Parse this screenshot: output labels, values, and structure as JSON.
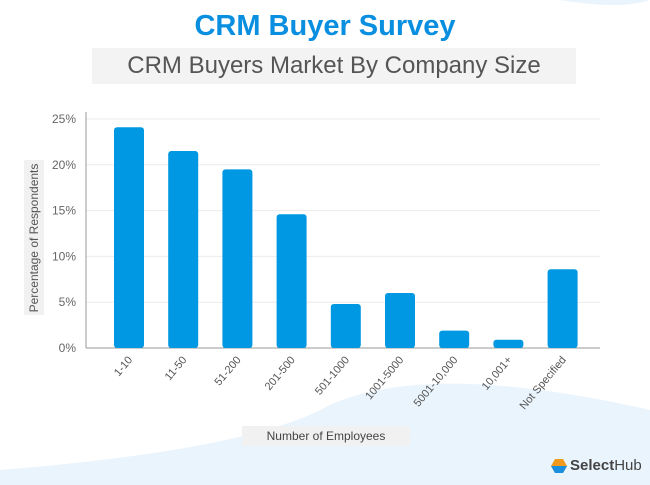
{
  "header": {
    "title": "CRM Buyer Survey",
    "subtitle": "CRM Buyers Market By Company Size"
  },
  "logo": {
    "bold": "Select",
    "rest": "Hub"
  },
  "chart_data": {
    "type": "bar",
    "title": "CRM Buyers Market By Company Size",
    "xlabel": "Number of Employees",
    "ylabel": "Percentage of Respondents",
    "categories": [
      "1-10",
      "11-50",
      "51-200",
      "201-500",
      "501-1000",
      "1001-5000",
      "5001-10,000",
      "10,001+",
      "Not Specified"
    ],
    "values": [
      24.1,
      21.5,
      19.5,
      14.6,
      4.8,
      6.0,
      1.9,
      0.9,
      8.6
    ],
    "ylim": [
      0,
      25
    ],
    "yticks": [
      "0%",
      "5%",
      "10%",
      "15%",
      "20%",
      "25%"
    ],
    "grid": true,
    "bar_color": "#0098e3"
  }
}
